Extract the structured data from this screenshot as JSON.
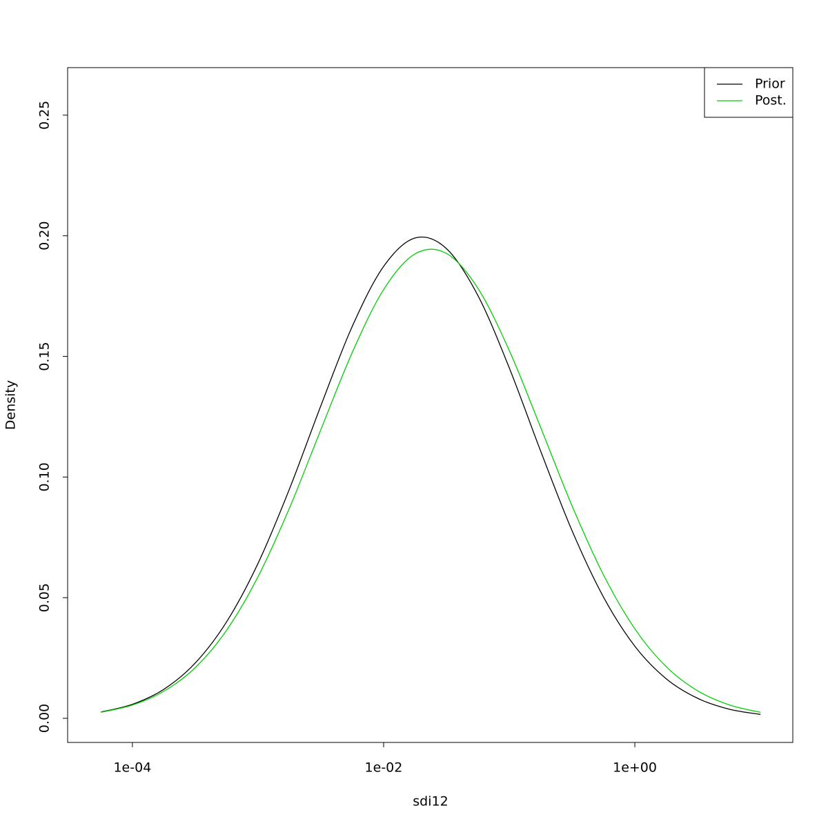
{
  "chart_data": {
    "type": "line",
    "xlabel": "sdi12",
    "ylabel": "Density",
    "xlog": true,
    "x": [
      5.623e-05,
      0.0001,
      0.0001778,
      0.0003162,
      0.0005623,
      0.001,
      0.001778,
      0.003162,
      0.005623,
      0.01,
      0.01778,
      0.03162,
      0.05623,
      0.1,
      0.1778,
      0.3162,
      0.5623,
      1,
      1.778,
      3.162,
      5.623,
      10
    ],
    "series": [
      {
        "name": "Prior",
        "color": "#000000",
        "values": [
          0.0026,
          0.0058,
          0.012,
          0.0229,
          0.04,
          0.0642,
          0.095,
          0.1295,
          0.1624,
          0.1873,
          0.1991,
          0.1947,
          0.1753,
          0.1453,
          0.1108,
          0.0778,
          0.0503,
          0.0299,
          0.0164,
          0.0083,
          0.0038,
          0.0016
        ]
      },
      {
        "name": "Post.",
        "color": "#00cd00",
        "values": [
          0.0025,
          0.0055,
          0.0112,
          0.021,
          0.0365,
          0.0587,
          0.0871,
          0.1196,
          0.1516,
          0.1777,
          0.1925,
          0.1927,
          0.1783,
          0.1525,
          0.1206,
          0.0881,
          0.0595,
          0.0371,
          0.0214,
          0.0114,
          0.0056,
          0.0025
        ]
      }
    ],
    "xlim": [
      3.05e-05,
      18.1
    ],
    "xticks": [
      {
        "value": 0.0001,
        "label": "1e-04"
      },
      {
        "value": 0.01,
        "label": "1e-02"
      },
      {
        "value": 1,
        "label": "1e+00"
      }
    ],
    "ylim": [
      -0.01,
      0.2697
    ],
    "yticks": [
      {
        "value": 0,
        "label": "0.00"
      },
      0.05,
      {
        "value": 0.1,
        "label": "0.10"
      },
      0.15,
      {
        "value": 0.2,
        "label": "0.20"
      },
      0.25
    ],
    "legend": "top-right"
  }
}
